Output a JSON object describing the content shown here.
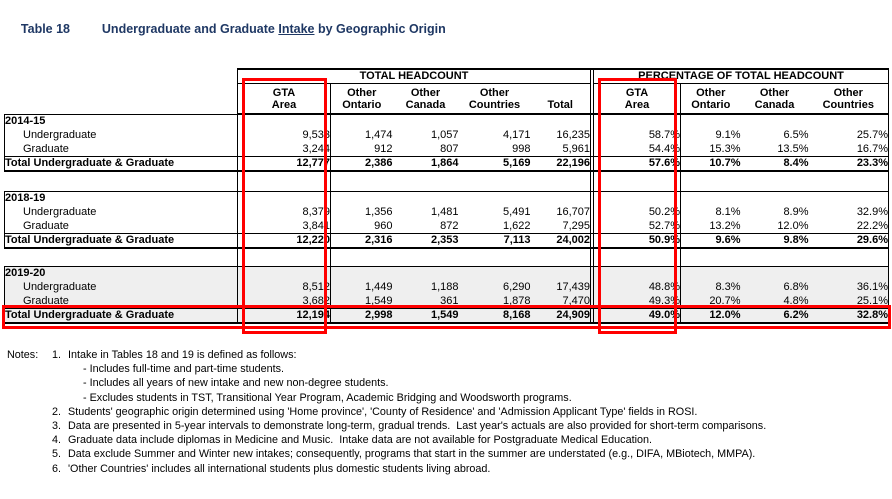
{
  "title": {
    "number": "Table 18",
    "text_before": "Undergraduate and Graduate ",
    "underlined": "Intake",
    "text_after": " by Geographic Origin"
  },
  "colors": {
    "title_navy": "#1f3864",
    "shaded_row_bg": "#efefef",
    "highlight_red": "#ff0000"
  },
  "table": {
    "group_headers": [
      "TOTAL HEADCOUNT",
      "PERCENTAGE OF TOTAL HEADCOUNT"
    ],
    "column_headers": [
      [
        "GTA",
        "Area"
      ],
      [
        "Other",
        "Ontario"
      ],
      [
        "Other",
        "Canada"
      ],
      [
        "Other",
        "Countries"
      ],
      [
        "Total",
        ""
      ],
      [
        "GTA",
        "Area"
      ],
      [
        "Other",
        "Ontario"
      ],
      [
        "Other",
        "Canada"
      ],
      [
        "Other",
        "Countries"
      ]
    ],
    "sections": [
      {
        "year": "2014-15",
        "shaded": false,
        "rows": [
          {
            "label": "Undergraduate",
            "headcount": [
              "9,533",
              "1,474",
              "1,057",
              "4,171",
              "16,235"
            ],
            "pct": [
              "58.7%",
              "9.1%",
              "6.5%",
              "25.7%"
            ]
          },
          {
            "label": "Graduate",
            "headcount": [
              "3,244",
              "912",
              "807",
              "998",
              "5,961"
            ],
            "pct": [
              "54.4%",
              "15.3%",
              "13.5%",
              "16.7%"
            ]
          }
        ],
        "total": {
          "label": "Total Undergraduate & Graduate",
          "headcount": [
            "12,777",
            "2,386",
            "1,864",
            "5,169",
            "22,196"
          ],
          "pct": [
            "57.6%",
            "10.7%",
            "8.4%",
            "23.3%"
          ]
        }
      },
      {
        "year": "2018-19",
        "shaded": false,
        "rows": [
          {
            "label": "Undergraduate",
            "headcount": [
              "8,379",
              "1,356",
              "1,481",
              "5,491",
              "16,707"
            ],
            "pct": [
              "50.2%",
              "8.1%",
              "8.9%",
              "32.9%"
            ]
          },
          {
            "label": "Graduate",
            "headcount": [
              "3,841",
              "960",
              "872",
              "1,622",
              "7,295"
            ],
            "pct": [
              "52.7%",
              "13.2%",
              "12.0%",
              "22.2%"
            ]
          }
        ],
        "total": {
          "label": "Total Undergraduate & Graduate",
          "headcount": [
            "12,220",
            "2,316",
            "2,353",
            "7,113",
            "24,002"
          ],
          "pct": [
            "50.9%",
            "9.6%",
            "9.8%",
            "29.6%"
          ]
        }
      },
      {
        "year": "2019-20",
        "shaded": true,
        "rows": [
          {
            "label": "Undergraduate",
            "headcount": [
              "8,512",
              "1,449",
              "1,188",
              "6,290",
              "17,439"
            ],
            "pct": [
              "48.8%",
              "8.3%",
              "6.8%",
              "36.1%"
            ]
          },
          {
            "label": "Graduate",
            "headcount": [
              "3,682",
              "1,549",
              "361",
              "1,878",
              "7,470"
            ],
            "pct": [
              "49.3%",
              "20.7%",
              "4.8%",
              "25.1%"
            ]
          }
        ],
        "total": {
          "label": "Total Undergraduate & Graduate",
          "headcount": [
            "12,194",
            "2,998",
            "1,549",
            "8,168",
            "24,909"
          ],
          "pct": [
            "49.0%",
            "12.0%",
            "6.2%",
            "32.8%"
          ]
        }
      }
    ]
  },
  "notes": {
    "label": "Notes:",
    "items": [
      {
        "num": "1.",
        "text": "Intake in Tables 18 and 19 is defined as follows:",
        "subitems": [
          "- Includes full-time and part-time students.",
          "- Includes all years of new intake and new non-degree students.",
          "- Excludes students in TST, Transitional Year Program, Academic Bridging and Woodsworth programs."
        ]
      },
      {
        "num": "2.",
        "text": "Students' geographic origin determined using 'Home province', 'County of Residence' and 'Admission Applicant Type' fields in ROSI.",
        "subitems": []
      },
      {
        "num": "3.",
        "text": "Data are presented in 5-year intervals to demonstrate long-term, gradual trends.  Last year's actuals are also provided for short-term comparisons.",
        "subitems": []
      },
      {
        "num": "4.",
        "text": "Graduate data include diplomas in Medicine and Music.  Intake data are not available for Postgraduate Medical Education.",
        "subitems": []
      },
      {
        "num": "5.",
        "text": "Data exclude Summer and Winter new intakes; consequently, programs that start in the summer are understated (e.g., DIFA, MBiotech, MMPA).",
        "subitems": []
      },
      {
        "num": "6.",
        "text": "'Other Countries' includes all international students plus domestic students living abroad.",
        "subitems": []
      }
    ]
  }
}
